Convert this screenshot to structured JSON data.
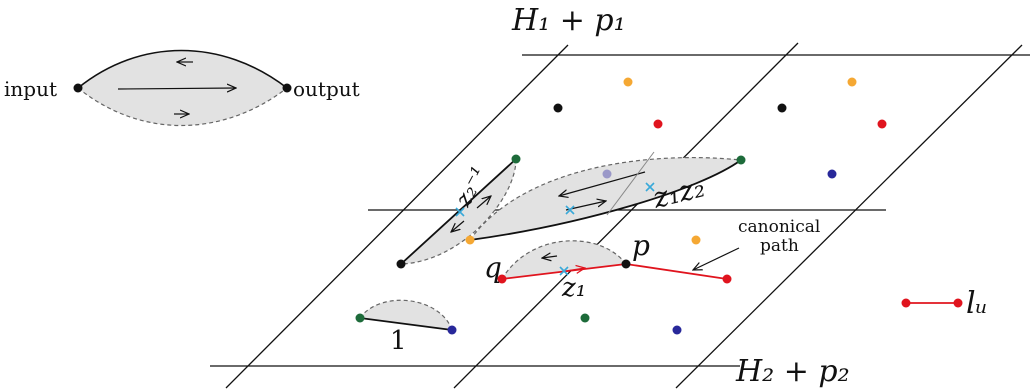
{
  "labels": {
    "h1": "H₁ + p₁",
    "h2": "H₂ + p₂",
    "input": "input",
    "output": "output",
    "z2_inv": "z₂⁻¹",
    "z1z2": "z₁z₂",
    "z1": "z₁",
    "p": "p",
    "q": "q",
    "canonical_1": "canonical",
    "canonical_2": "path",
    "one": "1",
    "lu": "lᵤ"
  },
  "colors": {
    "black": "#111111",
    "red": "#e0141e",
    "orange": "#f5a833",
    "green": "#1d6b3a",
    "blue": "#28289a",
    "lavender": "#9a98c8",
    "cyan": "#39a9d9",
    "region_fill": "#e2e2e2",
    "dashed": "#666666"
  }
}
